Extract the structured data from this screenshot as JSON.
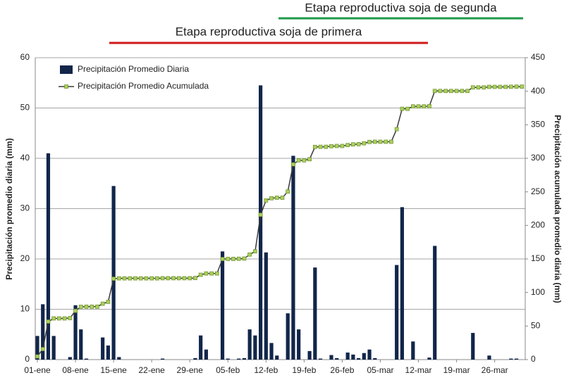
{
  "chart_data": {
    "type": "bar-line",
    "annotations": [
      {
        "text": "Etapa reproductiva soja de segunda",
        "color": "#1f9a4a"
      },
      {
        "text": "Etapa reproductiva soja de primera",
        "color": "#d01818"
      }
    ],
    "ylabel": "Precipitación promedio diaria (mm)",
    "y2label": "Precipitación acumulada promedio diaria (mm)",
    "categories": [
      "01-ene",
      null,
      null,
      null,
      null,
      null,
      null,
      "08-ene",
      null,
      null,
      null,
      null,
      null,
      null,
      "15-ene",
      null,
      null,
      null,
      null,
      null,
      null,
      "22-ene",
      null,
      null,
      null,
      null,
      null,
      null,
      "29-ene",
      null,
      null,
      null,
      null,
      null,
      null,
      "05-feb",
      null,
      null,
      null,
      null,
      null,
      null,
      "12-feb",
      null,
      null,
      null,
      null,
      null,
      null,
      "19-feb",
      null,
      null,
      null,
      null,
      null,
      null,
      "26-feb",
      null,
      null,
      null,
      null,
      null,
      null,
      "05-mar",
      null,
      null,
      null,
      null,
      null,
      null,
      "12-mar",
      null,
      null,
      null,
      null,
      null,
      null,
      "19-mar",
      null,
      null,
      null,
      null,
      null,
      null,
      "26-mar",
      null,
      null,
      null,
      null,
      null
    ],
    "series": [
      {
        "name": "Precipitación Promedio Diaria",
        "type": "bar",
        "axis": "y",
        "color": "#12264a",
        "values": [
          4.7,
          11,
          41,
          4.7,
          0,
          0,
          0.5,
          10.8,
          6,
          0.2,
          0,
          0,
          4.4,
          2.8,
          34.5,
          0.5,
          0,
          0,
          0,
          0,
          0,
          0,
          0,
          0.2,
          0,
          0,
          0,
          0,
          0,
          0.3,
          4.8,
          2,
          0,
          0,
          21.5,
          0.2,
          0,
          0.2,
          0.3,
          6,
          4.8,
          54.5,
          21.3,
          3.3,
          0.8,
          0,
          9.2,
          40.5,
          6,
          0,
          1.7,
          18.3,
          0.2,
          0,
          0.9,
          0.3,
          0,
          1.4,
          1,
          0.3,
          1.3,
          2,
          0.3,
          0,
          0,
          0,
          18.8,
          30.3,
          0,
          3.6,
          0,
          0,
          0.4,
          22.6,
          0,
          0,
          0,
          0,
          0,
          0,
          5.3,
          0,
          0,
          0.8,
          0,
          0,
          0,
          0.2,
          0.2,
          0
        ]
      },
      {
        "name": "Precipitación Promedio Acumulada",
        "type": "line",
        "axis": "y2",
        "color": "#3a3a3a",
        "marker_color": "#a9d15c",
        "values": [
          4.7,
          15.7,
          56.7,
          61.4,
          61.4,
          61.4,
          61.9,
          72.7,
          78.7,
          78.9,
          78.9,
          78.9,
          83.3,
          86.1,
          120.6,
          121.1,
          121.1,
          121.1,
          121.1,
          121.1,
          121.1,
          121.1,
          121.1,
          121.3,
          121.3,
          121.3,
          121.3,
          121.3,
          121.3,
          121.6,
          126.4,
          128.4,
          128.4,
          128.4,
          149.9,
          150.1,
          150.1,
          150.3,
          150.6,
          156.6,
          161.4,
          215.9,
          237.2,
          240.5,
          241.3,
          241.3,
          250.5,
          291,
          297,
          297,
          298.7,
          317,
          317.2,
          317.2,
          318.1,
          318.4,
          318.4,
          319.8,
          320.8,
          321.1,
          322.4,
          324.4,
          324.7,
          324.7,
          324.7,
          324.7,
          343.5,
          373.8,
          373.8,
          377.4,
          377.4,
          377.4,
          377.8,
          400.4,
          400.4,
          400.4,
          400.4,
          400.4,
          400.4,
          400.4,
          405.7,
          405.7,
          405.7,
          406.5,
          406.5,
          406.5,
          406.5,
          406.7,
          406.9,
          406.9
        ]
      }
    ],
    "ylim": [
      0,
      60
    ],
    "yticks": [
      0,
      10,
      20,
      30,
      40,
      50,
      60
    ],
    "y2lim": [
      0,
      450
    ],
    "y2ticks": [
      0,
      50,
      100,
      150,
      200,
      250,
      300,
      350,
      400,
      450
    ],
    "grid": true,
    "legend": "upper-left"
  }
}
